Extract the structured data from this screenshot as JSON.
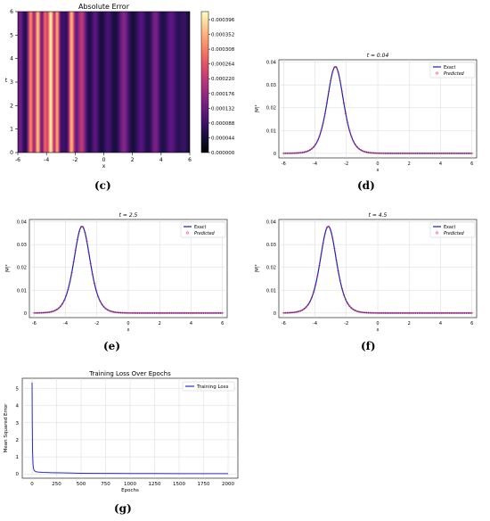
{
  "labels": {
    "c": "(c)",
    "d": "(d)",
    "e": "(e)",
    "f": "(f)",
    "g": "(g)"
  },
  "chart_data": [
    {
      "id": "c",
      "type": "heatmap",
      "title": "Absolute Error",
      "xlabel": "x",
      "ylabel": "t",
      "xlim": [
        -6,
        6
      ],
      "ylim": [
        0,
        6
      ],
      "xticks": [
        -6,
        -4,
        -2,
        0,
        2,
        4,
        6
      ],
      "yticks": [
        0,
        1,
        2,
        3,
        4,
        5,
        6
      ],
      "colorbar": {
        "min": 0,
        "max": 0.00042,
        "ticks": [
          "0.000000",
          "0.000044",
          "0.000088",
          "0.000132",
          "0.000176",
          "0.000220",
          "0.000264",
          "0.000308",
          "0.000352",
          "0.000396"
        ]
      },
      "bands": [
        {
          "x": -5.85,
          "level": 0.00012,
          "width": 0.28
        },
        {
          "x": -5.1,
          "level": 0.0003,
          "width": 0.22
        },
        {
          "x": -4.6,
          "level": 0.00036,
          "width": 0.2
        },
        {
          "x": -4.1,
          "level": 0.00026,
          "width": 0.18
        },
        {
          "x": -3.7,
          "level": 0.0004,
          "width": 0.2
        },
        {
          "x": -3.25,
          "level": 0.00033,
          "width": 0.18
        },
        {
          "x": -2.8,
          "level": 7e-05,
          "width": 0.2
        },
        {
          "x": -2.25,
          "level": 0.00034,
          "width": 0.22
        },
        {
          "x": -1.55,
          "level": 0.0002,
          "width": 0.35
        },
        {
          "x": -0.6,
          "level": 0.0001,
          "width": 0.3
        },
        {
          "x": 0.3,
          "level": 8e-05,
          "width": 0.35
        },
        {
          "x": 1.4,
          "level": 0.00014,
          "width": 0.4
        },
        {
          "x": 2.6,
          "level": 9e-05,
          "width": 0.4
        },
        {
          "x": 3.6,
          "level": 0.00013,
          "width": 0.35
        },
        {
          "x": 4.7,
          "level": 0.0001,
          "width": 0.45
        },
        {
          "x": 5.6,
          "level": 6e-05,
          "width": 0.35
        }
      ],
      "background_level": 2e-05
    },
    {
      "id": "d",
      "type": "line",
      "title": "t = 0.04",
      "xlabel": "x",
      "ylabel": "|Ψ|²",
      "xlim": [
        -6.3,
        6.3
      ],
      "ylim": [
        -0.002,
        0.041
      ],
      "xticks": [
        -6,
        -4,
        -2,
        0,
        2,
        4,
        6
      ],
      "yticks": [
        0.0,
        0.01,
        0.02,
        0.03,
        0.04
      ],
      "grid": true,
      "legend": "top-right",
      "series": [
        {
          "name": "Exact",
          "color": "#1f1fa8",
          "style": "line",
          "peak_x": -2.7,
          "amplitude": 0.038,
          "width": 0.7
        },
        {
          "name": "Predicted",
          "color": "#e8507a",
          "style": "markers",
          "peak_x": -2.7,
          "amplitude": 0.038,
          "width": 0.7
        }
      ]
    },
    {
      "id": "e",
      "type": "line",
      "title": "t = 2.5",
      "xlabel": "x",
      "ylabel": "|Ψ|²",
      "xlim": [
        -6.3,
        6.3
      ],
      "ylim": [
        -0.002,
        0.041
      ],
      "xticks": [
        -6,
        -4,
        -2,
        0,
        2,
        4,
        6
      ],
      "yticks": [
        0.0,
        0.01,
        0.02,
        0.03,
        0.04
      ],
      "grid": true,
      "legend": "top-right",
      "series": [
        {
          "name": "Exact",
          "color": "#1f1fa8",
          "style": "line",
          "peak_x": -2.95,
          "amplitude": 0.038,
          "width": 0.7
        },
        {
          "name": "Predicted",
          "color": "#e8507a",
          "style": "markers",
          "peak_x": -2.95,
          "amplitude": 0.038,
          "width": 0.7
        }
      ]
    },
    {
      "id": "f",
      "type": "line",
      "title": "t = 4.5",
      "xlabel": "x",
      "ylabel": "|Ψ|²",
      "xlim": [
        -6.3,
        6.3
      ],
      "ylim": [
        -0.002,
        0.041
      ],
      "xticks": [
        -6,
        -4,
        -2,
        0,
        2,
        4,
        6
      ],
      "yticks": [
        0.0,
        0.01,
        0.02,
        0.03,
        0.04
      ],
      "grid": true,
      "legend": "top-right",
      "series": [
        {
          "name": "Exact",
          "color": "#1f1fa8",
          "style": "line",
          "peak_x": -3.15,
          "amplitude": 0.038,
          "width": 0.7
        },
        {
          "name": "Predicted",
          "color": "#e8507a",
          "style": "markers",
          "peak_x": -3.15,
          "amplitude": 0.038,
          "width": 0.7
        }
      ]
    },
    {
      "id": "g",
      "type": "line",
      "title": "Training Loss Over Epochs",
      "xlabel": "Epochs",
      "ylabel": "Mean Squared Error",
      "xlim": [
        -100,
        2100
      ],
      "ylim": [
        -0.25,
        5.6
      ],
      "xticks": [
        0,
        250,
        500,
        750,
        1000,
        1250,
        1500,
        1750,
        2000
      ],
      "yticks": [
        0,
        1,
        2,
        3,
        4,
        5
      ],
      "grid": true,
      "legend": "top-right",
      "series": [
        {
          "name": "Training Loss",
          "color": "#2a2ad0",
          "x": [
            0,
            2,
            5,
            10,
            15,
            20,
            30,
            40,
            60,
            80,
            100,
            150,
            200,
            300,
            400,
            500,
            750,
            1000,
            1250,
            1500,
            1750,
            2000
          ],
          "y": [
            5.35,
            3.2,
            1.3,
            0.55,
            0.32,
            0.22,
            0.16,
            0.13,
            0.11,
            0.1,
            0.09,
            0.08,
            0.07,
            0.06,
            0.05,
            0.035,
            0.03,
            0.025,
            0.022,
            0.02,
            0.018,
            0.017
          ]
        }
      ]
    }
  ]
}
